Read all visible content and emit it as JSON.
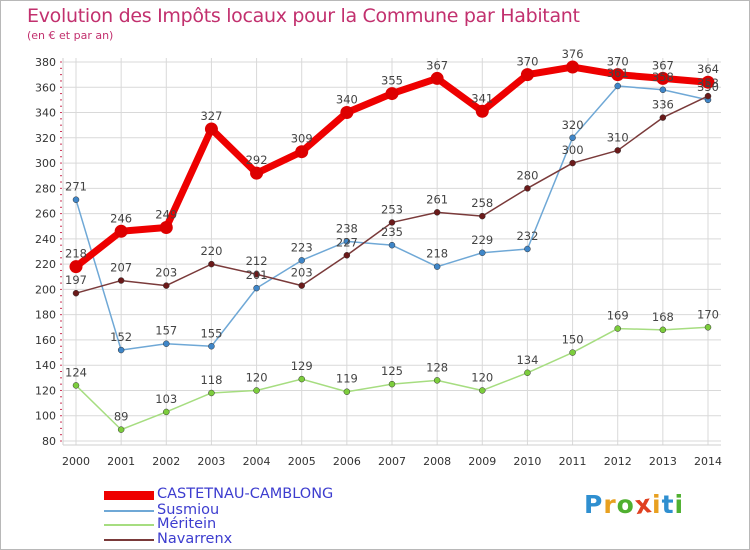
{
  "title": "Evolution des Impôts locaux pour la Commune par Habitant",
  "subtitle": "(en € et par an)",
  "logo": {
    "text": [
      "P",
      "r",
      "o",
      "x",
      "i",
      "t",
      "i"
    ],
    "colors": [
      "#2f8fd0",
      "#e8a020",
      "#50b030",
      "#e04020",
      "#e8a020",
      "#2f8fd0",
      "#50b030"
    ]
  },
  "chart_data": {
    "type": "line",
    "title": "Evolution des Impôts locaux pour la Commune par Habitant",
    "subtitle": "(en € et par an)",
    "xlabel": "",
    "ylabel": "",
    "x": [
      "2000",
      "2001",
      "2002",
      "2003",
      "2004",
      "2005",
      "2006",
      "2007",
      "2008",
      "2009",
      "2010",
      "2011",
      "2012",
      "2013",
      "2014"
    ],
    "ylim": [
      80,
      380
    ],
    "yticks": [
      80,
      100,
      120,
      140,
      160,
      180,
      200,
      220,
      240,
      260,
      280,
      300,
      320,
      340,
      360,
      380
    ],
    "grid": true,
    "legend": "bottom-left",
    "series": [
      {
        "name": "CASTETNAU-CAMBLONG",
        "color": "#ee0000",
        "marker": "#dd0000",
        "labelColor": "#444444",
        "values": [
          218,
          246,
          249,
          327,
          292,
          309,
          340,
          355,
          367,
          341,
          370,
          376,
          370,
          367,
          364
        ]
      },
      {
        "name": "Susmiou",
        "color": "#6fa8d6",
        "marker": "#3f86c8",
        "labelColor": "#444444",
        "values": [
          271,
          152,
          157,
          155,
          201,
          223,
          238,
          235,
          218,
          229,
          232,
          320,
          361,
          358,
          350
        ]
      },
      {
        "name": "Méritein",
        "color": "#a6dd80",
        "marker": "#7ccd3c",
        "labelColor": "#444444",
        "values": [
          124,
          89,
          103,
          118,
          120,
          129,
          119,
          125,
          128,
          120,
          134,
          150,
          169,
          168,
          170
        ]
      },
      {
        "name": "Navarrenx",
        "color": "#7a3a3a",
        "marker": "#6b1a1a",
        "labelColor": "#444444",
        "values": [
          197,
          207,
          203,
          220,
          212,
          203,
          227,
          253,
          261,
          258,
          280,
          300,
          310,
          336,
          353
        ]
      }
    ]
  }
}
